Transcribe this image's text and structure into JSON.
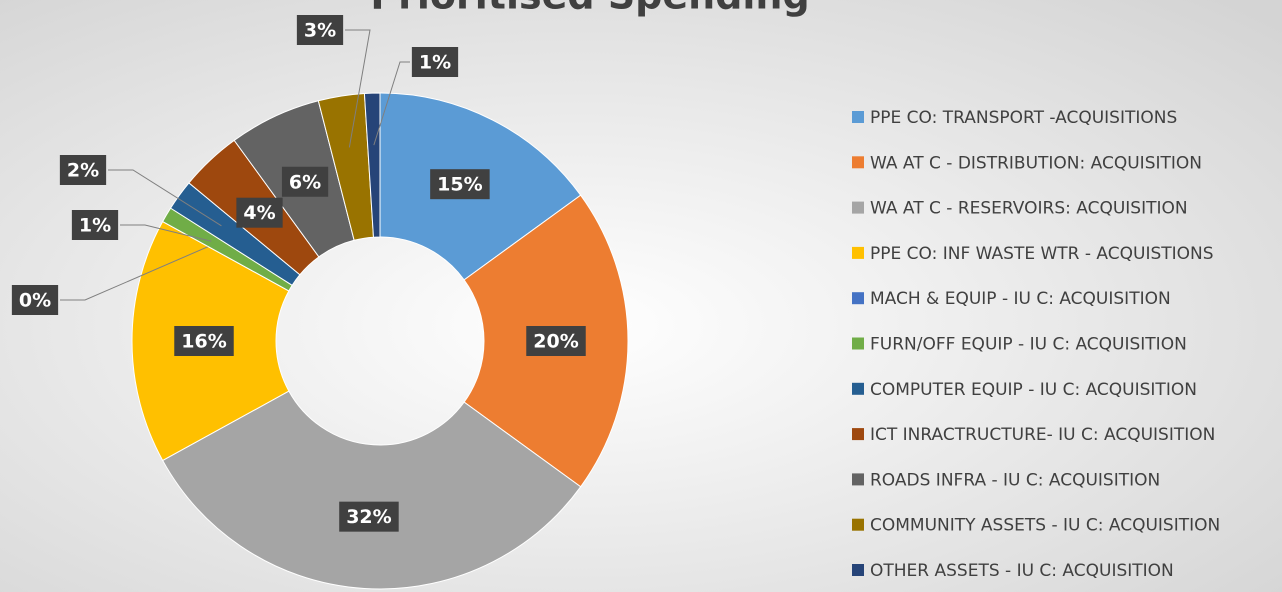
{
  "chart_data": {
    "type": "donut",
    "title": "Prioritised Spending",
    "categories": [
      "PPE CO: TRANSPORT -ACQUISITIONS",
      "WA AT C - DISTRIBUTION: ACQUISITION",
      "WA AT C - RESERVOIRS: ACQUISITION",
      "PPE CO: INF WASTE WTR - ACQUISTIONS",
      "MACH & EQUIP - IU C: ACQUISITION",
      "FURN/OFF EQUIP - IU C: ACQUISITION",
      "COMPUTER EQUIP - IU C: ACQUISITION",
      "ICT INRACTRUCTURE- IU C: ACQUISITION",
      "ROADS INFRA - IU C: ACQUISITION",
      "COMMUNITY ASSETS - IU C: ACQUISITION",
      "OTHER ASSETS - IU C: ACQUISITION"
    ],
    "values": [
      15,
      20,
      32,
      16,
      0,
      1,
      2,
      4,
      6,
      3,
      1
    ],
    "value_labels": [
      "15%",
      "20%",
      "32%",
      "16%",
      "0%",
      "1%",
      "2%",
      "4%",
      "6%",
      "3%",
      "1%"
    ],
    "colors": [
      "#5b9bd5",
      "#ed7d31",
      "#a5a5a5",
      "#ffc000",
      "#4472c4",
      "#70ad47",
      "#255e91",
      "#9e480e",
      "#636363",
      "#997300",
      "#264478"
    ],
    "legend": "right"
  }
}
